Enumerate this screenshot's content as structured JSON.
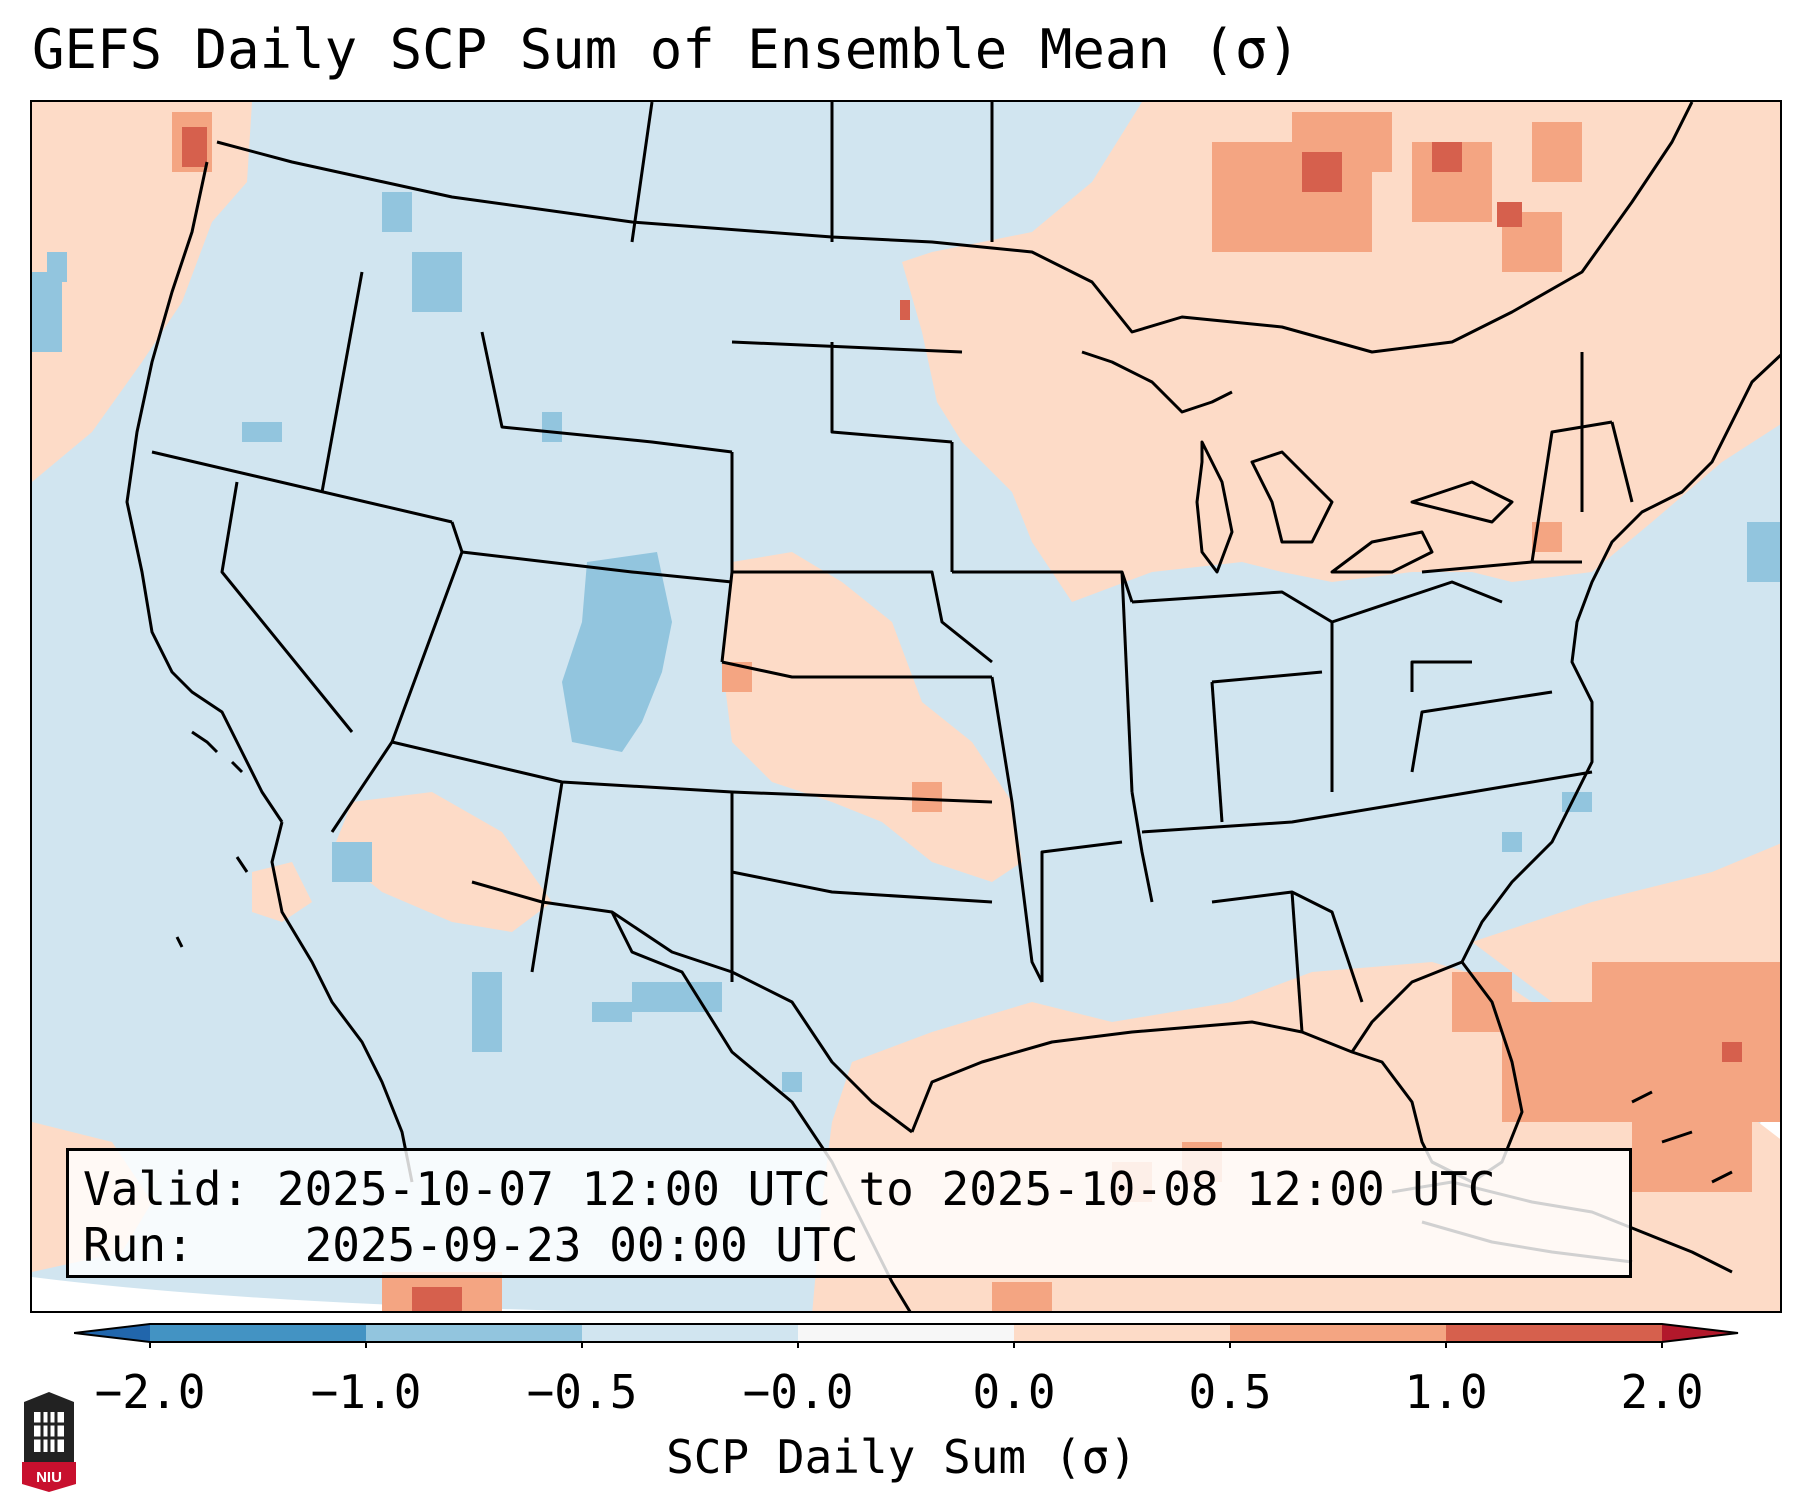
{
  "title": "GEFS Daily SCP Sum of Ensemble Mean (σ)",
  "info": {
    "valid_label": "Valid:",
    "valid_value": "2025-10-07 12:00 UTC to 2025-10-08 12:00 UTC",
    "run_label": "Run:",
    "run_value": "2025-09-23 00:00 UTC"
  },
  "colorbar": {
    "label": "SCP Daily Sum (σ)",
    "ticks": [
      "−2.0",
      "−1.0",
      "−0.5",
      "−0.0",
      "0.0",
      "0.5",
      "1.0",
      "2.0"
    ],
    "colors": [
      "#4393c3",
      "#92c5de",
      "#d1e5f0",
      "#f7f7f7",
      "#fddbc7",
      "#f4a582",
      "#d6604d"
    ],
    "extend_low_color": "#2166ac",
    "extend_high_color": "#b2182b"
  },
  "map_colors": {
    "background": "#d1e5f0",
    "positive_light": "#fddbc7",
    "positive_mid": "#f4a582",
    "positive_high": "#d6604d",
    "negative_mid": "#92c5de",
    "lines": "#000000"
  },
  "logo": {
    "text": "NIU"
  }
}
